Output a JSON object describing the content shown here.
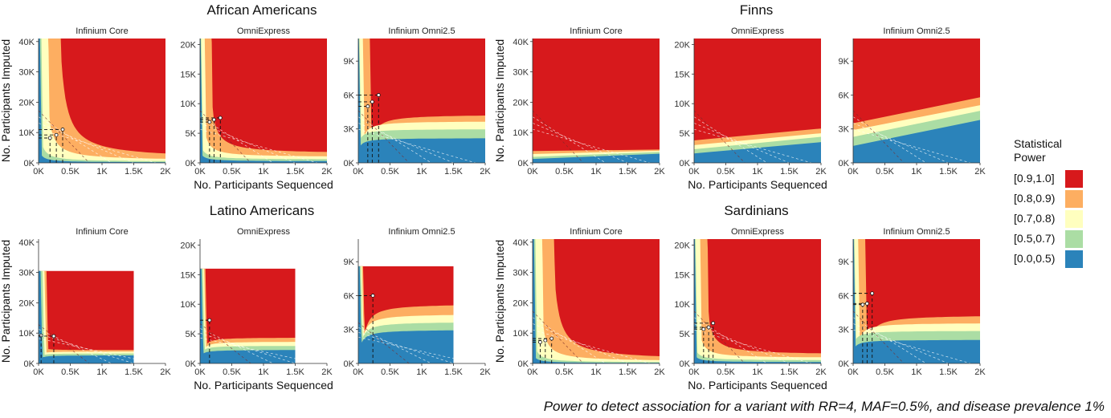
{
  "chart_data": {
    "type": "heatmap",
    "caption": "Power to detect association for a variant with RR=4, MAF=0.5%, and disease prevalence 1%",
    "xlabel": "No. Participants Sequenced",
    "ylabel": "No. Participants Imputed",
    "x_ticks": [
      "0K",
      "0.5K",
      "1K",
      "1.5K",
      "2K"
    ],
    "xlim": [
      0,
      2000
    ],
    "legend": {
      "title_line1": "Statistical",
      "title_line2": "Power",
      "position": "right",
      "items": [
        {
          "label": "[0.9,1.0]",
          "color": "#d7191c"
        },
        {
          "label": "[0.8,0.9)",
          "color": "#fdae61"
        },
        {
          "label": "[0.7,0.8)",
          "color": "#ffffbf"
        },
        {
          "label": "[0.5,0.7)",
          "color": "#abdda4"
        },
        {
          "label": "[0.0,0.5)",
          "color": "#2b83ba"
        }
      ]
    },
    "arrays": [
      {
        "name": "Infinium Core",
        "ylim": [
          0,
          41000
        ],
        "y_ticks": [
          "0K",
          "10K",
          "20K",
          "30K",
          "40K"
        ],
        "y_values": [
          0,
          10000,
          20000,
          30000,
          40000
        ]
      },
      {
        "name": "OmniExpress",
        "ylim": [
          0,
          21000
        ],
        "y_ticks": [
          "0K",
          "5K",
          "10K",
          "15K",
          "20K"
        ],
        "y_values": [
          0,
          5000,
          10000,
          15000,
          20000
        ]
      },
      {
        "name": "Infinium Omni2.5",
        "ylim": [
          0,
          11000
        ],
        "y_ticks": [
          "0K",
          "3K",
          "6K",
          "9K"
        ],
        "y_values": [
          0,
          3000,
          6000,
          9000
        ]
      }
    ],
    "panels": [
      {
        "group": "African Americans",
        "array": 0,
        "xmax": 2000,
        "ymax": 41000,
        "vert": [
          80,
          190,
          320
        ],
        "curve": [
          [
            10800,
            1200
          ],
          [
            7400,
            700
          ],
          [
            5300,
            350
          ],
          [
            3000,
            120
          ]
        ],
        "cross": [
          [
            180,
            8200
          ],
          [
            280,
            9200
          ],
          [
            380,
            11000
          ]
        ]
      },
      {
        "group": "African Americans",
        "array": 1,
        "xmax": 2000,
        "ymax": 21000,
        "vert": [
          30,
          90,
          170
        ],
        "curve": [
          [
            4600,
            1500
          ],
          [
            3600,
            950
          ],
          [
            2700,
            550
          ],
          [
            1700,
            250
          ]
        ],
        "cross": [
          [
            150,
            6900
          ],
          [
            220,
            7300
          ],
          [
            320,
            7600
          ]
        ]
      },
      {
        "group": "African Americans",
        "array": 2,
        "xmax": 2000,
        "ymax": 11000,
        "vert": [
          25,
          90,
          180
        ],
        "curve": [
          [
            3300,
            4300
          ],
          [
            2700,
            3700
          ],
          [
            1900,
            3000
          ],
          [
            1200,
            2200
          ]
        ],
        "cross": [
          [
            150,
            5000
          ],
          [
            220,
            5400
          ],
          [
            320,
            6000
          ]
        ]
      },
      {
        "group": "Finns",
        "array": 0,
        "xmax": 2000,
        "ymax": 41000,
        "vert": [],
        "curve": [
          [
            3900,
            4400
          ],
          [
            2900,
            4000
          ],
          [
            2000,
            3600
          ],
          [
            1300,
            3000
          ]
        ],
        "cross": []
      },
      {
        "group": "Finns",
        "array": 1,
        "xmax": 2000,
        "ymax": 21000,
        "vert": [],
        "curve": [
          [
            3800,
            5800
          ],
          [
            3000,
            5000
          ],
          [
            2300,
            4400
          ],
          [
            1600,
            3500
          ]
        ],
        "cross": []
      },
      {
        "group": "Finns",
        "array": 2,
        "xmax": 2000,
        "ymax": 11000,
        "vert": [],
        "curve": [
          [
            3500,
            5800
          ],
          [
            2900,
            5100
          ],
          [
            2300,
            4600
          ],
          [
            1500,
            3800
          ]
        ],
        "cross": []
      },
      {
        "group": "Latino Americans",
        "array": 0,
        "xmax": 1500,
        "ymax": 30500,
        "vert": [
          120
        ],
        "curve": [
          [
            4600,
            4400
          ],
          [
            3700,
            3900
          ],
          [
            2900,
            3300
          ],
          [
            1900,
            2700
          ]
        ],
        "cross": [
          [
            40,
            9200
          ],
          [
            240,
            9000
          ]
        ]
      },
      {
        "group": "Latino Americans",
        "array": 1,
        "xmax": 1500,
        "ymax": 16000,
        "vert": [
          80
        ],
        "curve": [
          [
            3600,
            4400
          ],
          [
            2900,
            3700
          ],
          [
            2300,
            3000
          ],
          [
            1500,
            2300
          ]
        ],
        "cross": [
          [
            150,
            7300
          ]
        ]
      },
      {
        "group": "Latino Americans",
        "array": 2,
        "xmax": 1500,
        "ymax": 8600,
        "vert": [
          70
        ],
        "curve": [
          [
            3200,
            5300
          ],
          [
            2700,
            4400
          ],
          [
            2100,
            3700
          ],
          [
            1400,
            3000
          ]
        ],
        "cross": [
          [
            230,
            6000
          ]
        ]
      },
      {
        "group": "Sardinians",
        "array": 0,
        "xmax": 2000,
        "ymax": 41000,
        "vert": [
          80,
          190,
          320
        ],
        "curve": [
          [
            8000,
            1000
          ],
          [
            5800,
            600
          ],
          [
            4000,
            300
          ],
          [
            2200,
            100
          ]
        ],
        "cross": [
          [
            120,
            7000
          ],
          [
            200,
            7600
          ],
          [
            300,
            8200
          ]
        ]
      },
      {
        "group": "Sardinians",
        "array": 1,
        "xmax": 2000,
        "ymax": 21000,
        "vert": [
          40,
          120,
          200
        ],
        "curve": [
          [
            3800,
            1400
          ],
          [
            2900,
            900
          ],
          [
            2200,
            500
          ],
          [
            1400,
            200
          ]
        ],
        "cross": [
          [
            150,
            5800
          ],
          [
            230,
            6100
          ],
          [
            300,
            6800
          ]
        ]
      },
      {
        "group": "Sardinians",
        "array": 2,
        "xmax": 2000,
        "ymax": 11000,
        "vert": [
          30,
          100,
          190
        ],
        "curve": [
          [
            3200,
            4300
          ],
          [
            2600,
            3600
          ],
          [
            1900,
            2900
          ],
          [
            1200,
            2100
          ]
        ],
        "cross": [
          [
            150,
            5200
          ],
          [
            220,
            5300
          ],
          [
            300,
            6200
          ]
        ]
      }
    ]
  }
}
